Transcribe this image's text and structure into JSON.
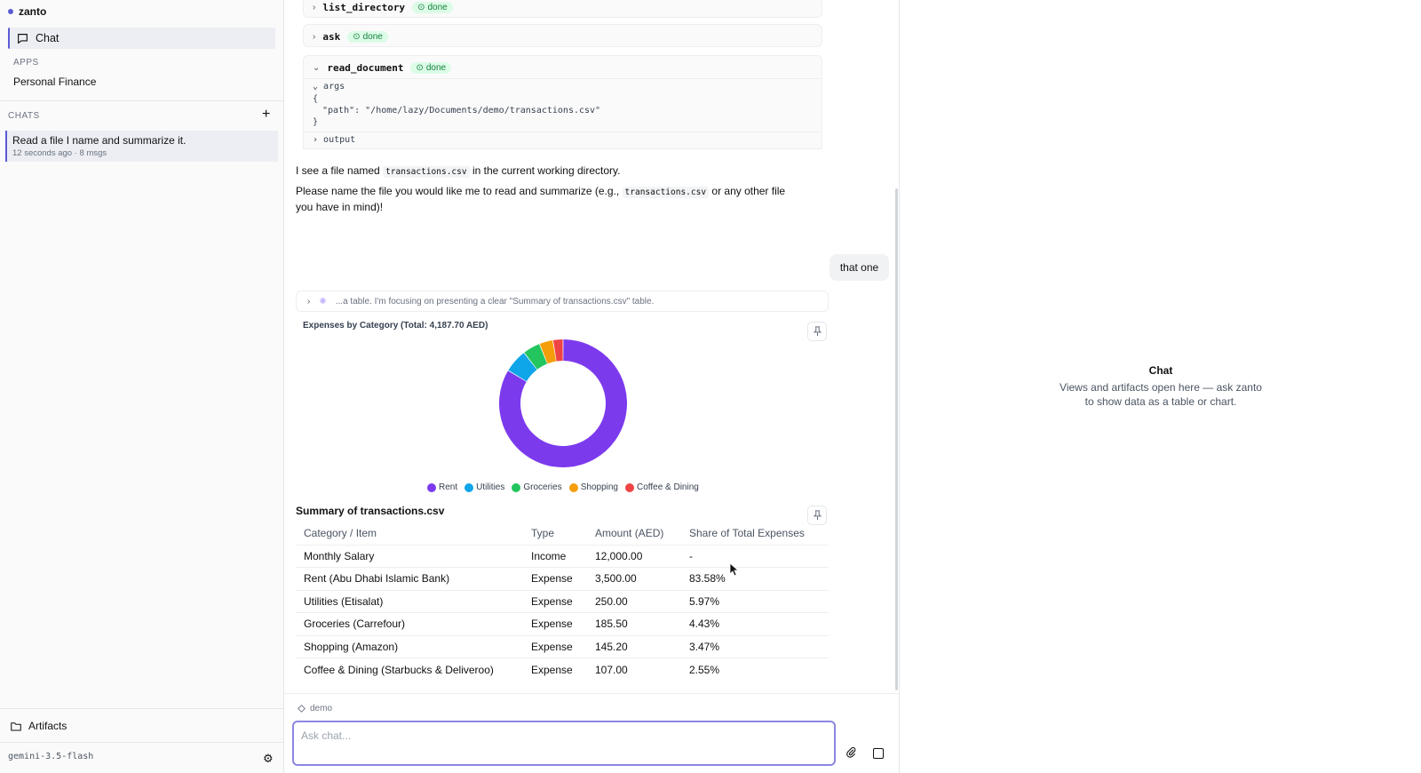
{
  "sidebar": {
    "brand": "zanto",
    "nav_chat": "Chat",
    "apps_label": "APPS",
    "apps": [
      {
        "label": "Personal Finance"
      }
    ],
    "chats_label": "CHATS",
    "chats": [
      {
        "title": "Read a file I name and summarize it.",
        "meta": "12 seconds ago · 8 msgs"
      }
    ],
    "artifacts_label": "Artifacts",
    "model": "gemini-3.5-flash"
  },
  "tools": [
    {
      "name": "list_directory",
      "status": "done"
    },
    {
      "name": "ask",
      "status": "done"
    },
    {
      "name": "read_document",
      "status": "done",
      "args_label": "args",
      "args_open": "{",
      "args_line": "\"path\": \"/home/lazy/Documents/demo/transactions.csv\"",
      "args_close": "}",
      "output_label": "output"
    }
  ],
  "assistant": {
    "line1_pre": "I see a file named",
    "line1_code": "transactions.csv",
    "line1_post": "in the current working directory.",
    "line2_pre": "Please name the file you would like me to read and summarize (e.g.,",
    "line2_code": "transactions.csv",
    "line2_post": "or any other file you",
    "line2_cont": "have in mind)!"
  },
  "user_message": "that one",
  "thinking_text": "...a table. I'm focusing on presenting a clear \"Summary of transactions.csv\" table.",
  "chart_data": {
    "type": "pie",
    "title": "Expenses by Category (Total: 4,187.70 AED)",
    "categories": [
      "Rent",
      "Utilities",
      "Groceries",
      "Shopping",
      "Coffee & Dining"
    ],
    "values": [
      3500.0,
      250.0,
      185.5,
      145.2,
      107.0
    ],
    "colors": [
      "#7c3aed",
      "#0ea5e9",
      "#22c55e",
      "#f59e0b",
      "#ef4444"
    ],
    "legend_position": "bottom"
  },
  "summary_table": {
    "title": "Summary of transactions.csv",
    "headers": [
      "Category / Item",
      "Type",
      "Amount (AED)",
      "Share of Total Expenses"
    ],
    "rows": [
      [
        "Monthly Salary",
        "Income",
        "12,000.00",
        "-"
      ],
      [
        "Rent (Abu Dhabi Islamic Bank)",
        "Expense",
        "3,500.00",
        "83.58%"
      ],
      [
        "Utilities (Etisalat)",
        "Expense",
        "250.00",
        "5.97%"
      ],
      [
        "Groceries (Carrefour)",
        "Expense",
        "185.50",
        "4.43%"
      ],
      [
        "Shopping (Amazon)",
        "Expense",
        "145.20",
        "3.47%"
      ],
      [
        "Coffee & Dining (Starbucks & Deliveroo)",
        "Expense",
        "107.00",
        "2.55%"
      ]
    ]
  },
  "composer": {
    "workspace": "demo",
    "placeholder": "Ask chat..."
  },
  "right_panel": {
    "title": "Chat",
    "description": "Views and artifacts open here — ask zanto to show data as a table or chart."
  },
  "icons": {
    "chat": "chat-bubble-icon",
    "plus": "plus-icon",
    "folder": "folder-icon",
    "gear": "gear-icon",
    "pin": "pin-icon",
    "clip": "paperclip-icon",
    "stop": "stop-icon",
    "workspace": "diamond-icon",
    "spinner": "spinner-icon"
  },
  "accent_color": "#5b5bd6"
}
